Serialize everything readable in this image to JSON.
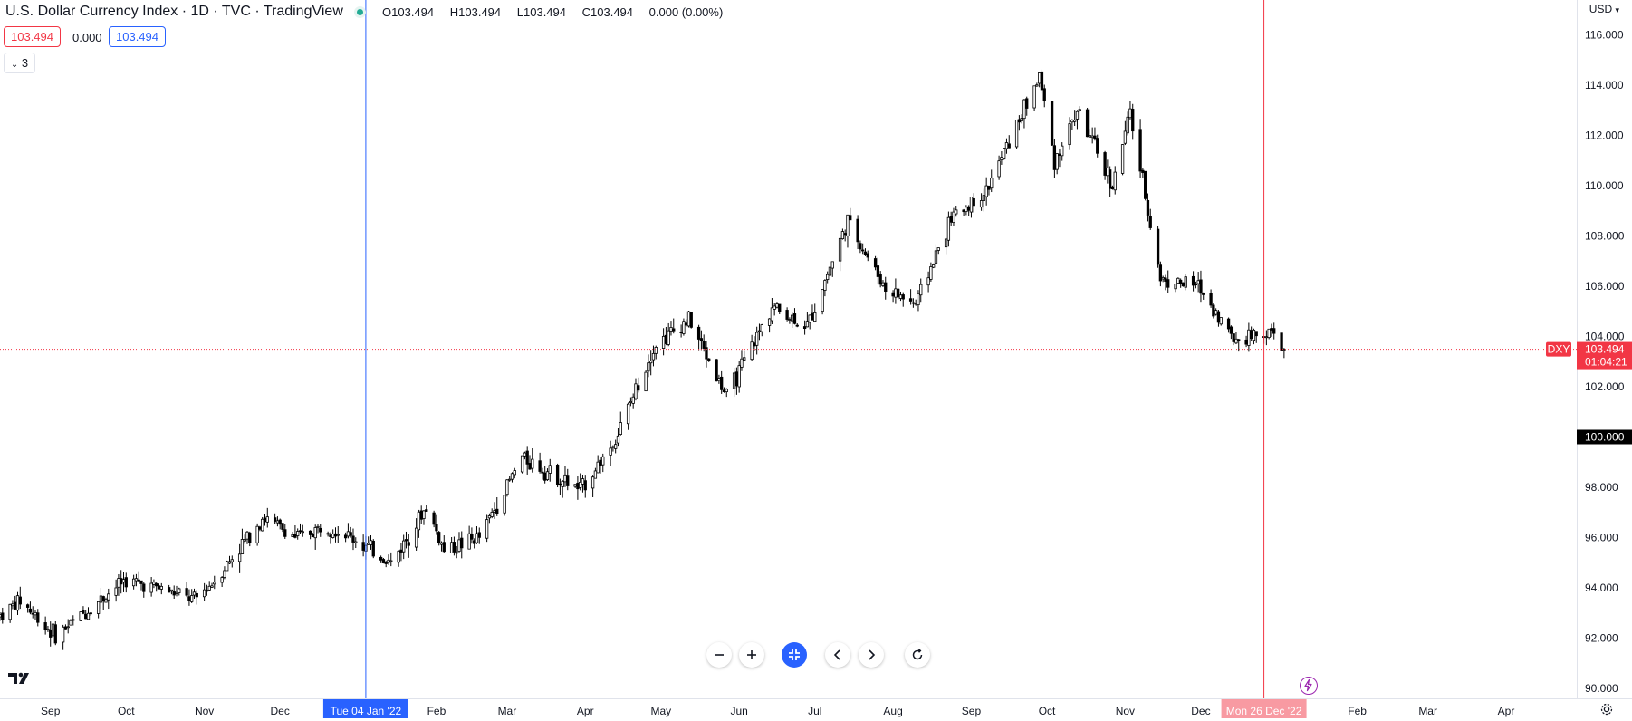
{
  "header": {
    "title": "U.S. Dollar Currency Index · 1D · TVC · TradingView",
    "ohlc": {
      "o_label": "O",
      "o": "103.494",
      "h_label": "H",
      "h": "103.494",
      "l_label": "L",
      "l": "103.494",
      "c_label": "C",
      "c": "103.494",
      "change": "0.000 (0.00%)"
    },
    "bid": "103.494",
    "spread": "0.000",
    "ask": "103.494",
    "indicators_count": "3",
    "currency": "USD"
  },
  "status_colors": {
    "up": "#22ab94",
    "down": "#f23645",
    "accent": "#2962ff"
  },
  "chart_data": {
    "type": "candlestick",
    "title": "U.S. Dollar Currency Index",
    "ylim": [
      89.6,
      116.6
    ],
    "x_range": [
      "2021-08-12",
      "2023-04-29"
    ],
    "y_ticks": [
      "90.000",
      "92.000",
      "94.000",
      "96.000",
      "98.000",
      "100.000",
      "102.000",
      "104.000",
      "106.000",
      "108.000",
      "110.000",
      "112.000",
      "114.000",
      "116.000"
    ],
    "x_ticks": [
      {
        "label": "Sep",
        "date": "2021-09-01"
      },
      {
        "label": "Oct",
        "date": "2021-10-01"
      },
      {
        "label": "Nov",
        "date": "2021-11-01"
      },
      {
        "label": "Dec",
        "date": "2021-12-01"
      },
      {
        "label": "Feb",
        "date": "2022-02-01"
      },
      {
        "label": "Mar",
        "date": "2022-03-01"
      },
      {
        "label": "Apr",
        "date": "2022-04-01"
      },
      {
        "label": "May",
        "date": "2022-05-01"
      },
      {
        "label": "Jun",
        "date": "2022-06-01"
      },
      {
        "label": "Jul",
        "date": "2022-07-01"
      },
      {
        "label": "Aug",
        "date": "2022-08-01"
      },
      {
        "label": "Sep",
        "date": "2022-09-01"
      },
      {
        "label": "Oct",
        "date": "2022-10-01"
      },
      {
        "label": "Nov",
        "date": "2022-11-01"
      },
      {
        "label": "Dec",
        "date": "2022-12-01"
      },
      {
        "label": "Feb",
        "date": "2023-02-01"
      },
      {
        "label": "Mar",
        "date": "2023-03-01"
      },
      {
        "label": "Apr",
        "date": "2023-04-01"
      }
    ],
    "close_path": [
      {
        "date": "2021-08-12",
        "value": 92.9
      },
      {
        "date": "2021-08-20",
        "value": 93.5
      },
      {
        "date": "2021-09-03",
        "value": 92.1
      },
      {
        "date": "2021-09-17",
        "value": 93.2
      },
      {
        "date": "2021-09-30",
        "value": 94.3
      },
      {
        "date": "2021-10-14",
        "value": 94.0
      },
      {
        "date": "2021-10-28",
        "value": 93.5
      },
      {
        "date": "2021-11-05",
        "value": 94.3
      },
      {
        "date": "2021-11-12",
        "value": 95.2
      },
      {
        "date": "2021-11-24",
        "value": 96.8
      },
      {
        "date": "2021-12-08",
        "value": 96.0
      },
      {
        "date": "2021-12-20",
        "value": 96.5
      },
      {
        "date": "2021-12-31",
        "value": 95.9
      },
      {
        "date": "2022-01-14",
        "value": 95.0
      },
      {
        "date": "2022-01-28",
        "value": 97.2
      },
      {
        "date": "2022-02-04",
        "value": 95.5
      },
      {
        "date": "2022-02-18",
        "value": 96.0
      },
      {
        "date": "2022-03-07",
        "value": 99.2
      },
      {
        "date": "2022-03-14",
        "value": 98.8
      },
      {
        "date": "2022-03-30",
        "value": 97.9
      },
      {
        "date": "2022-04-13",
        "value": 99.9
      },
      {
        "date": "2022-04-28",
        "value": 103.6
      },
      {
        "date": "2022-05-12",
        "value": 104.7
      },
      {
        "date": "2022-05-27",
        "value": 101.6
      },
      {
        "date": "2022-06-14",
        "value": 105.2
      },
      {
        "date": "2022-06-28",
        "value": 104.4
      },
      {
        "date": "2022-07-14",
        "value": 108.6
      },
      {
        "date": "2022-07-29",
        "value": 105.9
      },
      {
        "date": "2022-08-10",
        "value": 105.3
      },
      {
        "date": "2022-08-24",
        "value": 108.7
      },
      {
        "date": "2022-09-07",
        "value": 109.8
      },
      {
        "date": "2022-09-28",
        "value": 114.4
      },
      {
        "date": "2022-10-04",
        "value": 111.0
      },
      {
        "date": "2022-10-13",
        "value": 113.0
      },
      {
        "date": "2022-10-27",
        "value": 110.0
      },
      {
        "date": "2022-11-03",
        "value": 112.9
      },
      {
        "date": "2022-11-15",
        "value": 106.3
      },
      {
        "date": "2022-11-30",
        "value": 106.0
      },
      {
        "date": "2022-12-14",
        "value": 103.9
      },
      {
        "date": "2022-12-28",
        "value": 104.2
      },
      {
        "date": "2023-01-03",
        "value": 103.494
      }
    ],
    "last_price": {
      "symbol": "DXY",
      "value": 103.494,
      "label": "103.494",
      "countdown": "01:04:21"
    },
    "horizontal_line": {
      "value": 100.0,
      "label": "100.000"
    },
    "crosshairs": [
      {
        "date": "2022-01-04",
        "label": "Tue 04 Jan '22",
        "color": "#2962ff"
      },
      {
        "date": "2022-12-26",
        "label": "Mon 26 Dec '22",
        "color": "#f23645"
      }
    ],
    "grid": false
  }
}
